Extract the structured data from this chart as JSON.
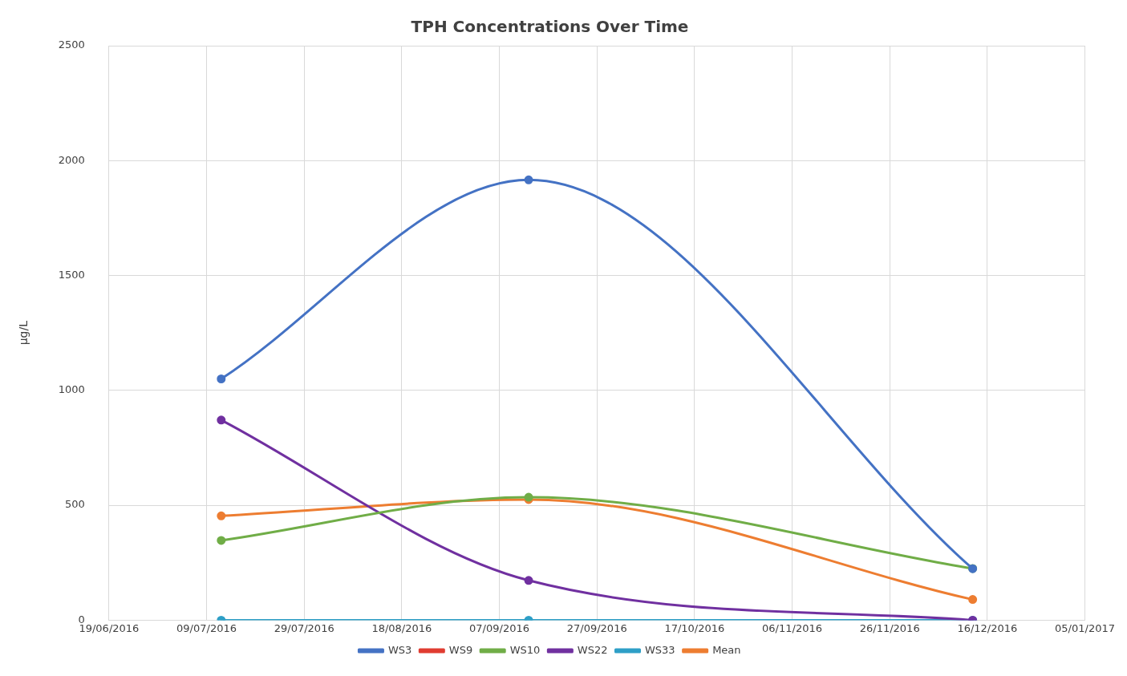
{
  "chart_data": {
    "type": "line",
    "title": "TPH Concentrations Over Time",
    "ylabel": "µg/L",
    "x": [
      "2016-07-12",
      "2016-09-13",
      "2016-12-13"
    ],
    "series": [
      {
        "name": "WS3",
        "color": "#4472c4",
        "values": [
          1050,
          1916,
          224
        ]
      },
      {
        "name": "WS9",
        "color": "#e03c31",
        "values": [
          null,
          null,
          null
        ]
      },
      {
        "name": "WS10",
        "color": "#70ad47",
        "values": [
          347,
          535,
          225
        ]
      },
      {
        "name": "WS22",
        "color": "#7030a0",
        "values": [
          871,
          173,
          0
        ]
      },
      {
        "name": "WS33",
        "color": "#2e9fc7",
        "values": [
          0,
          0,
          0
        ]
      },
      {
        "name": "Mean",
        "color": "#ed7d31",
        "values": [
          454,
          525,
          90
        ]
      }
    ],
    "xlim": [
      "2016-06-19",
      "2017-01-05"
    ],
    "xticks": [
      {
        "value": "2016-06-19",
        "label": "19/06/2016"
      },
      {
        "value": "2016-07-09",
        "label": "09/07/2016"
      },
      {
        "value": "2016-07-29",
        "label": "29/07/2016"
      },
      {
        "value": "2016-08-18",
        "label": "18/08/2016"
      },
      {
        "value": "2016-09-07",
        "label": "07/09/2016"
      },
      {
        "value": "2016-09-27",
        "label": "27/09/2016"
      },
      {
        "value": "2016-10-17",
        "label": "17/10/2016"
      },
      {
        "value": "2016-11-06",
        "label": "06/11/2016"
      },
      {
        "value": "2016-11-26",
        "label": "26/11/2016"
      },
      {
        "value": "2016-12-16",
        "label": "16/12/2016"
      },
      {
        "value": "2017-01-05",
        "label": "05/01/2017"
      }
    ],
    "ylim": [
      0,
      2500
    ],
    "yticks": [
      0,
      500,
      1000,
      1500,
      2000,
      2500
    ],
    "grid": true,
    "legend": "bottom",
    "marker": "circle",
    "line_style": "solid"
  }
}
